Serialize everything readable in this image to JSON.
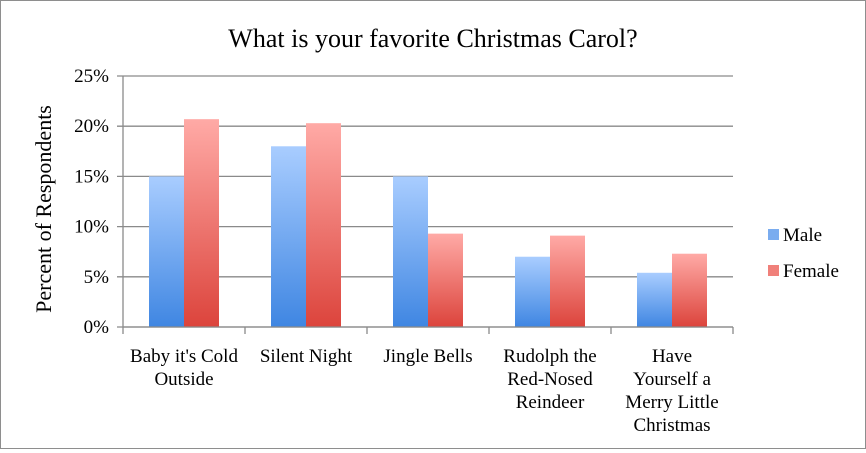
{
  "chart_data": {
    "type": "bar",
    "title": "What is your favorite Christmas Carol?",
    "xlabel": "",
    "ylabel": "Percent of Respondents",
    "ylim": [
      0,
      25
    ],
    "yticks": [
      0,
      5,
      10,
      15,
      20,
      25
    ],
    "ytick_labels": [
      "0%",
      "5%",
      "10%",
      "15%",
      "20%",
      "25%"
    ],
    "grid": true,
    "legend_position": "right",
    "categories": [
      [
        "Baby it's Cold",
        "Outside"
      ],
      [
        "Silent Night"
      ],
      [
        "Jingle Bells"
      ],
      [
        "Rudolph the",
        "Red-Nosed",
        "Reindeer"
      ],
      [
        "Have",
        "Yourself a",
        "Merry Little",
        "Christmas"
      ]
    ],
    "series": [
      {
        "name": "Male",
        "values": [
          15,
          18,
          15,
          7,
          5.4
        ],
        "colors": {
          "top": "#a9cdff",
          "bottom": "#3f86e2",
          "legend": "#7aacef"
        }
      },
      {
        "name": "Female",
        "values": [
          20.7,
          20.3,
          9.3,
          9.1,
          7.3
        ],
        "colors": {
          "top": "#ffaaa6",
          "bottom": "#dc443c",
          "legend": "#f0807a"
        }
      }
    ]
  }
}
